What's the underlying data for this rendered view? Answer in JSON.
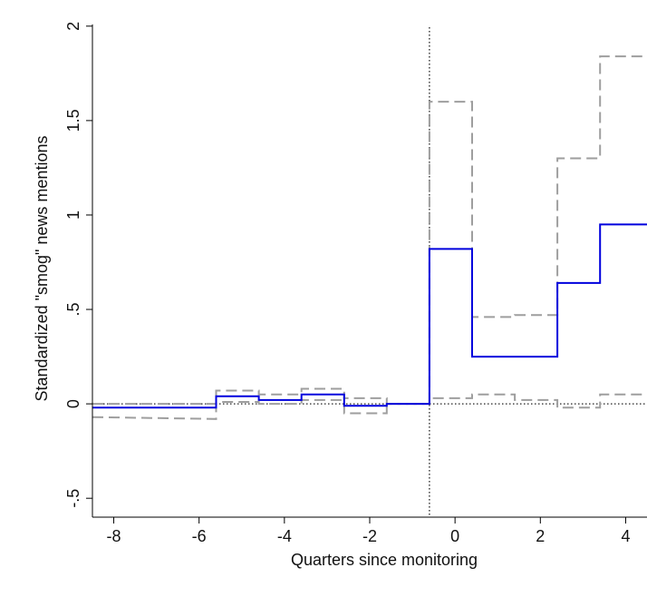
{
  "chart_data": {
    "type": "line",
    "title": "",
    "xlabel": "Quarters since monitoring",
    "ylabel": "Standardized \"smog\" news mentions",
    "xlim": [
      -8.5,
      4.5
    ],
    "ylim": [
      -0.6,
      2.1
    ],
    "x_ticks": [
      -8,
      -6,
      -4,
      -2,
      0,
      2,
      4
    ],
    "x_tick_labels": [
      "-8",
      "-6",
      "-4",
      "-2",
      "0",
      "2",
      "4"
    ],
    "y_ticks": [
      -0.5,
      0,
      0.5,
      1,
      1.5,
      2
    ],
    "y_tick_labels": [
      "-.5",
      "0",
      ".5",
      "1",
      "1.5",
      "2"
    ],
    "reference_lines": {
      "vertical_x": -0.6,
      "horizontal_y": 0
    },
    "grid": false,
    "legend": "none",
    "colors": {
      "estimate": "#0000dd",
      "ci": "#9e9e9e",
      "reference": "#222222"
    },
    "series": [
      {
        "style": "solid",
        "x": [
          -8.5,
          -5.6,
          -5.6,
          -4.6,
          -4.6,
          -3.6,
          -3.6,
          -2.6,
          -2.6,
          -1.6,
          -1.6,
          -0.6,
          -0.6,
          0.4,
          0.4,
          1.4,
          1.4,
          2.4,
          2.4,
          3.4,
          3.4,
          4.5
        ],
        "y": [
          -0.02,
          -0.02,
          0.04,
          0.04,
          0.02,
          0.02,
          0.05,
          0.05,
          -0.01,
          -0.01,
          0.0,
          0.0,
          0.82,
          0.82,
          0.25,
          0.25,
          0.25,
          0.25,
          0.64,
          0.64,
          0.95,
          0.95
        ]
      },
      {
        "style": "dashed",
        "x": [
          -8.5,
          -5.6,
          -5.6,
          -4.6,
          -4.6,
          -3.6,
          -3.6,
          -2.6,
          -2.6,
          -1.6,
          -1.6,
          -0.6,
          -0.6,
          0.4,
          0.4,
          1.4,
          1.4,
          2.4,
          2.4,
          3.4,
          3.4,
          4.5
        ],
        "y": [
          0.0,
          0.0,
          0.07,
          0.07,
          0.05,
          0.05,
          0.08,
          0.08,
          0.03,
          0.03,
          0.0,
          0.0,
          1.6,
          1.6,
          0.46,
          0.46,
          0.47,
          0.47,
          1.3,
          1.3,
          1.84,
          1.84
        ]
      },
      {
        "style": "dashed",
        "x": [
          -8.5,
          -5.6,
          -5.6,
          -4.6,
          -4.6,
          -3.6,
          -3.6,
          -2.6,
          -2.6,
          -1.6,
          -1.6,
          -0.6,
          -0.6,
          0.4,
          0.4,
          1.4,
          1.4,
          2.4,
          2.4,
          3.4,
          3.4,
          4.5
        ],
        "y": [
          -0.07,
          -0.08,
          0.01,
          0.01,
          0.0,
          0.0,
          0.02,
          0.02,
          -0.05,
          -0.05,
          0.0,
          0.0,
          0.03,
          0.03,
          0.05,
          0.05,
          0.02,
          0.02,
          -0.02,
          -0.02,
          0.05,
          0.05
        ]
      }
    ]
  }
}
